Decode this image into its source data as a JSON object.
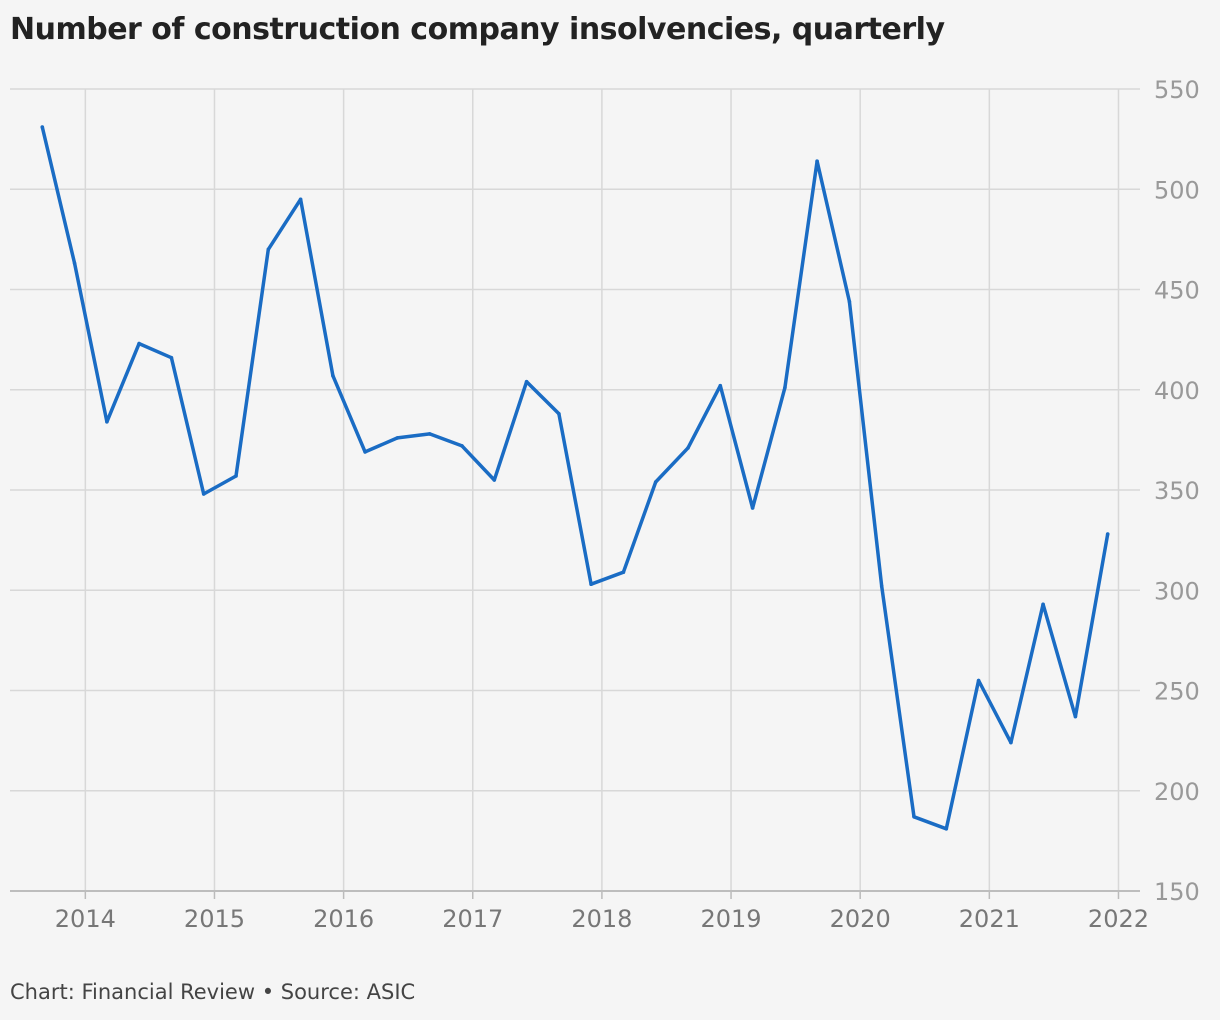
{
  "chart_data": {
    "type": "line",
    "title": "Number of construction company insolvencies, quarterly",
    "source": "Chart: Financial Review • Source: ASIC",
    "xlabel": "",
    "ylabel": "",
    "x_ticks": [
      "2014",
      "2015",
      "2016",
      "2017",
      "2018",
      "2019",
      "2020",
      "2021",
      "2022"
    ],
    "y_ticks": [
      150,
      200,
      250,
      300,
      350,
      400,
      450,
      500,
      550
    ],
    "ylim": [
      150,
      550
    ],
    "xlim": [
      "2013-06",
      "2022-03"
    ],
    "grid": true,
    "y_axis_position": "right",
    "series": [
      {
        "color": "#1a6cc4",
        "x": [
          "2013-09",
          "2013-12",
          "2014-03",
          "2014-06",
          "2014-09",
          "2014-12",
          "2015-03",
          "2015-06",
          "2015-09",
          "2015-12",
          "2016-03",
          "2016-06",
          "2016-09",
          "2016-12",
          "2017-03",
          "2017-06",
          "2017-09",
          "2017-12",
          "2018-03",
          "2018-06",
          "2018-09",
          "2018-12",
          "2019-03",
          "2019-06",
          "2019-09",
          "2019-12",
          "2020-03",
          "2020-06",
          "2020-09",
          "2020-12",
          "2021-03",
          "2021-06",
          "2021-09",
          "2021-12"
        ],
        "values": [
          531,
          463,
          384,
          423,
          416,
          348,
          357,
          470,
          495,
          407,
          369,
          376,
          378,
          372,
          355,
          404,
          388,
          303,
          309,
          354,
          371,
          402,
          341,
          401,
          514,
          444,
          302,
          187,
          181,
          255,
          224,
          293,
          237,
          328
        ]
      }
    ]
  }
}
